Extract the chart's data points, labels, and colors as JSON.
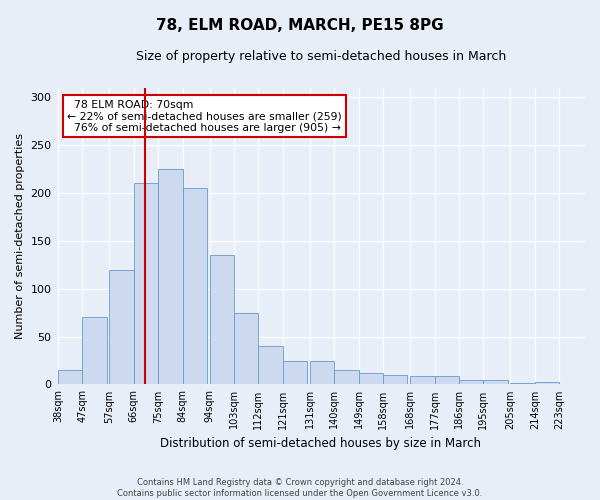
{
  "title": "78, ELM ROAD, MARCH, PE15 8PG",
  "subtitle": "Size of property relative to semi-detached houses in March",
  "xlabel": "Distribution of semi-detached houses by size in March",
  "ylabel": "Number of semi-detached properties",
  "property_size": 70,
  "pct_smaller": 22,
  "count_smaller": 259,
  "pct_larger": 76,
  "count_larger": 905,
  "bins": [
    38,
    47,
    57,
    66,
    75,
    84,
    94,
    103,
    112,
    121,
    131,
    140,
    149,
    158,
    168,
    177,
    186,
    195,
    205,
    214,
    223
  ],
  "counts": [
    15,
    70,
    120,
    210,
    225,
    205,
    135,
    75,
    40,
    25,
    25,
    15,
    12,
    10,
    9,
    9,
    5,
    5,
    1,
    3
  ],
  "bar_color": "#ccd9ee",
  "bar_edge_color": "#6699cc",
  "vline_color": "#cc0000",
  "annotation_box_bg": "#ffffff",
  "annotation_box_edge": "#cc0000",
  "fig_bg_color": "#e8eef7",
  "plot_bg_color": "#e8eef7",
  "grid_color": "#ffffff",
  "footer_text": "Contains HM Land Registry data © Crown copyright and database right 2024.\nContains public sector information licensed under the Open Government Licence v3.0.",
  "ylim": [
    0,
    310
  ],
  "yticks": [
    0,
    50,
    100,
    150,
    200,
    250,
    300
  ],
  "title_fontsize": 11,
  "subtitle_fontsize": 9,
  "ylabel_fontsize": 8,
  "xlabel_fontsize": 8.5
}
